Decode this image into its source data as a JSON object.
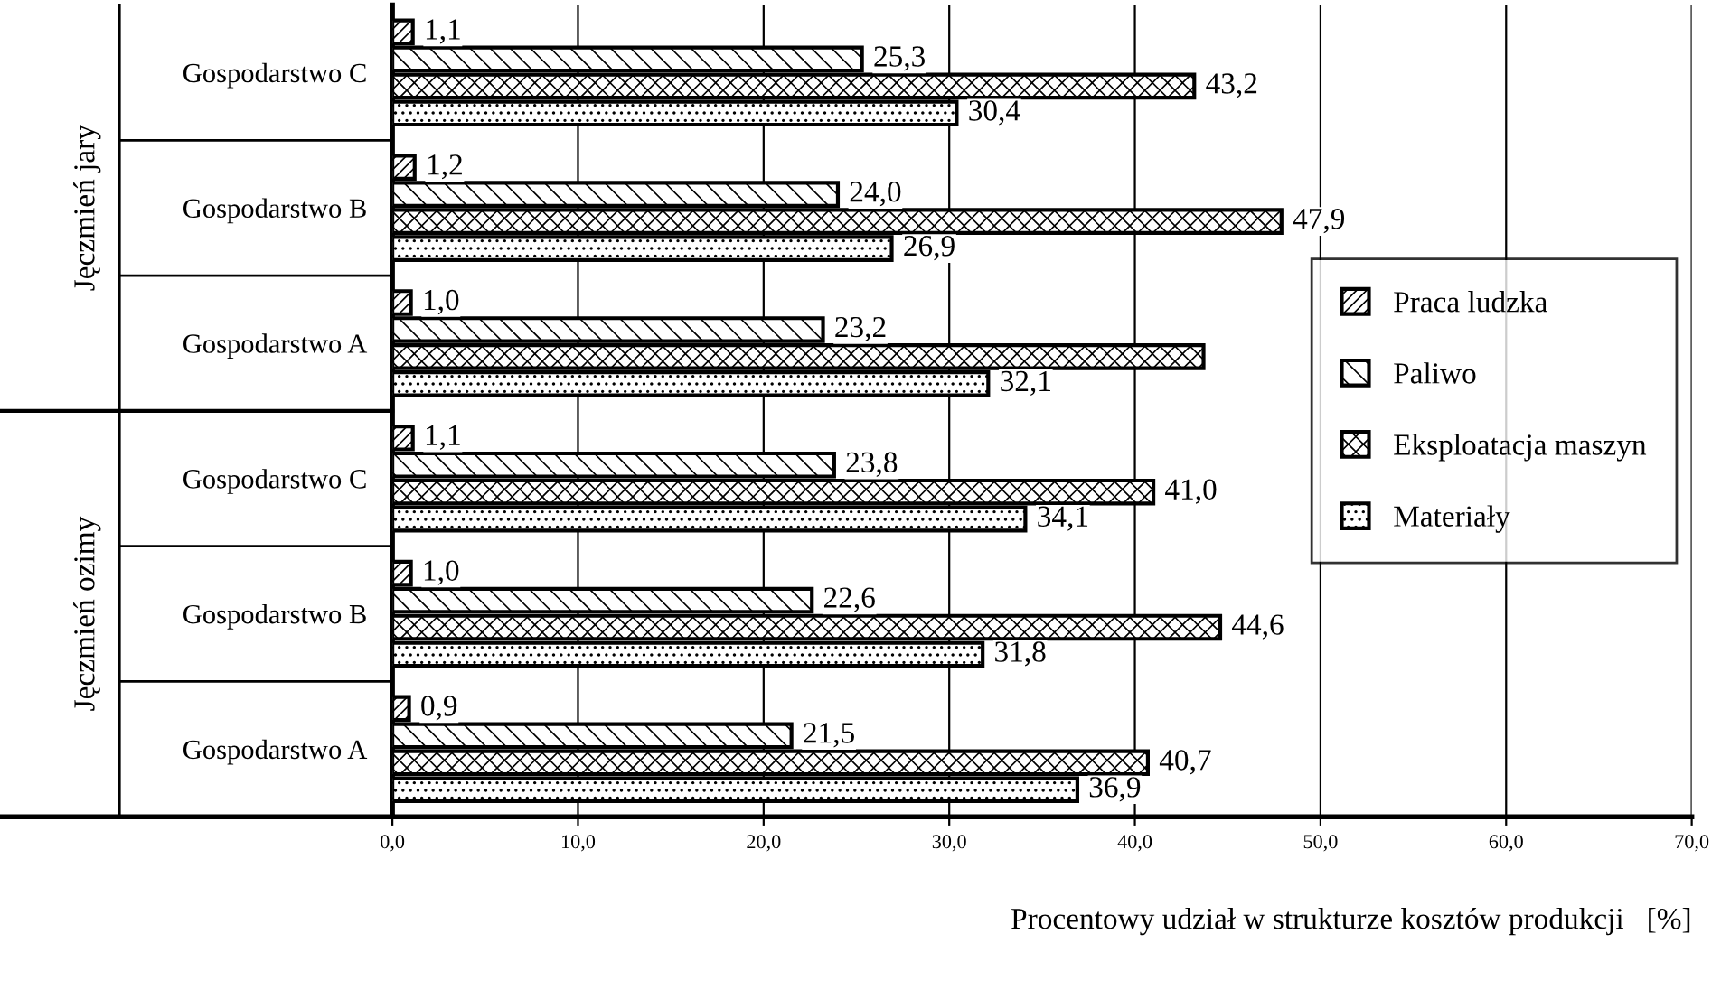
{
  "chart_data": {
    "type": "bar",
    "orientation": "horizontal",
    "categories": [
      "Gospodarstwo C",
      "Gospodarstwo B",
      "Gospodarstwo A",
      "Gospodarstwo C",
      "Gospodarstwo B",
      "Gospodarstwo A"
    ],
    "series": [
      {
        "name": "Praca ludzka",
        "color": "#000000",
        "values": [
          1.1,
          1.2,
          1.0,
          1.1,
          1.0,
          0.9
        ],
        "value_labels": [
          "1,1",
          "1,2",
          "1,0",
          "1,1",
          "1,0",
          "0,9"
        ]
      },
      {
        "name": "Paliwo",
        "color": "#000000",
        "values": [
          25.3,
          24.0,
          23.2,
          23.8,
          22.6,
          21.5
        ],
        "value_labels": [
          "25,3",
          "24,0",
          "23,2",
          "23,8",
          "22,6",
          "21,5"
        ]
      },
      {
        "name": "Eksploatacja maszyn",
        "color": "#000000",
        "values": [
          43.2,
          47.9,
          43.7,
          41.0,
          44.6,
          40.7
        ],
        "value_labels": [
          "43,2",
          "47,9",
          null,
          "41,0",
          "44,6",
          "40,7"
        ]
      },
      {
        "name": "Materiały",
        "color": "#000000",
        "values": [
          30.4,
          26.9,
          32.1,
          34.1,
          31.8,
          36.9
        ],
        "value_labels": [
          "30,4",
          "26,9",
          "32,1",
          "34,1",
          "31,8",
          "36,9"
        ]
      }
    ],
    "xlabel": "Procentowy udział w strukturze kosztów produkcji   [%]",
    "xlim": [
      0,
      70
    ],
    "xticks": [
      {
        "value": 0,
        "label": "0,0"
      },
      {
        "value": 10,
        "label": "10,0"
      },
      {
        "value": 20,
        "label": "20,0"
      },
      {
        "value": 30,
        "label": "30,0"
      },
      {
        "value": 40,
        "label": "40,0"
      },
      {
        "value": 50,
        "label": "50,0"
      },
      {
        "value": 60,
        "label": "60,0"
      },
      {
        "value": 70,
        "label": "70,0"
      }
    ],
    "grid": "x",
    "legend": "right",
    "annotations": [
      "Jęczmień jary",
      "Jęczmień ozimy"
    ]
  }
}
